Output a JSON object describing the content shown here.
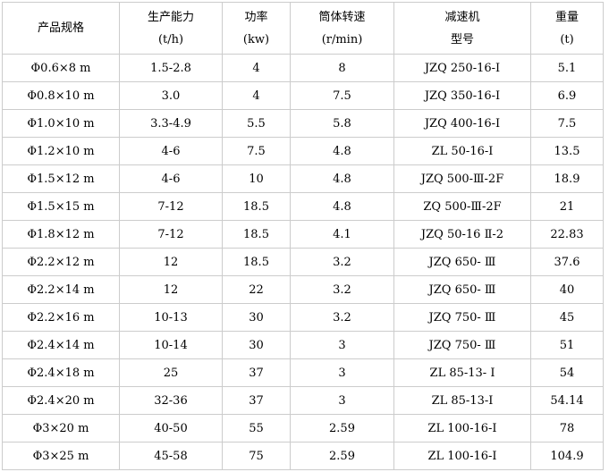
{
  "table": {
    "columns": [
      {
        "title": "产品规格",
        "unit": ""
      },
      {
        "title": "生产能力",
        "unit": "(t/h)"
      },
      {
        "title": "功率",
        "unit": "(kw)"
      },
      {
        "title": "筒体转速",
        "unit": "(r/min)"
      },
      {
        "title": "减速机",
        "unit": "型号"
      },
      {
        "title": "重量",
        "unit": "(t)"
      }
    ],
    "rows": [
      [
        "Φ0.6×8 m",
        "1.5-2.8",
        "4",
        "8",
        "JZQ 250-16-Ⅰ",
        "5.1"
      ],
      [
        "Φ0.8×10 m",
        "3.0",
        "4",
        "7.5",
        "JZQ 350-16-Ⅰ",
        "6.9"
      ],
      [
        "Φ1.0×10 m",
        "3.3-4.9",
        "5.5",
        "5.8",
        "JZQ 400-16-Ⅰ",
        "7.5"
      ],
      [
        "Φ1.2×10 m",
        "4-6",
        "7.5",
        "4.8",
        "ZL 50-16-Ⅰ",
        "13.5"
      ],
      [
        "Φ1.5×12 m",
        "4-6",
        "10",
        "4.8",
        "JZQ 500-Ⅲ-2F",
        "18.9"
      ],
      [
        "Φ1.5×15 m",
        "7-12",
        "18.5",
        "4.8",
        "ZQ 500-Ⅲ-2F",
        "21"
      ],
      [
        "Φ1.8×12 m",
        "7-12",
        "18.5",
        "4.1",
        "JZQ 50-16 Ⅱ-2",
        "22.83"
      ],
      [
        "Φ2.2×12 m",
        "12",
        "18.5",
        "3.2",
        "JZQ 650- Ⅲ",
        "37.6"
      ],
      [
        "Φ2.2×14 m",
        "12",
        "22",
        "3.2",
        "JZQ 650- Ⅲ",
        "40"
      ],
      [
        "Φ2.2×16 m",
        "10-13",
        "30",
        "3.2",
        "JZQ 750- Ⅲ",
        "45"
      ],
      [
        "Φ2.4×14 m",
        "10-14",
        "30",
        "3",
        "JZQ 750- Ⅲ",
        "51"
      ],
      [
        "Φ2.4×18 m",
        "25",
        "37",
        "3",
        "ZL 85-13- Ⅰ",
        "54"
      ],
      [
        "Φ2.4×20 m",
        "32-36",
        "37",
        "3",
        "ZL 85-13-Ⅰ",
        "54.14"
      ],
      [
        "Φ3×20 m",
        "40-50",
        "55",
        "2.59",
        "ZL 100-16-Ⅰ",
        "78"
      ],
      [
        "Φ3×25 m",
        "45-58",
        "75",
        "2.59",
        "ZL 100-16-I",
        "104.9"
      ]
    ]
  },
  "colors": {
    "border": "#cccccc",
    "text": "#000000",
    "background": "#ffffff"
  }
}
